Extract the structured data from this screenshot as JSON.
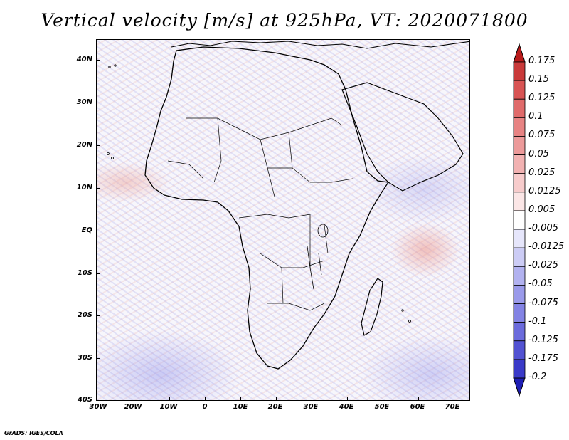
{
  "title": "Vertical velocity [m/s] at 925hPa, VT: 2020071800",
  "map": {
    "region": "Africa",
    "lat_labels": [
      "40N",
      "30N",
      "20N",
      "10N",
      "EQ",
      "10S",
      "20S",
      "30S",
      "40S"
    ],
    "lon_labels": [
      "30W",
      "20W",
      "10W",
      "0",
      "10E",
      "20E",
      "30E",
      "40E",
      "50E",
      "60E",
      "70E"
    ]
  },
  "colorbar": {
    "labels": [
      "0.175",
      "0.15",
      "0.125",
      "0.1",
      "0.075",
      "0.05",
      "0.025",
      "0.0125",
      "0.005",
      "-0.005",
      "-0.0125",
      "-0.025",
      "-0.05",
      "-0.075",
      "-0.1",
      "-0.125",
      "-0.175",
      "-0.2"
    ],
    "colors": [
      "#b91b1b",
      "#c93a3a",
      "#d85454",
      "#e06b6b",
      "#e78383",
      "#ec9a9a",
      "#f2b2b2",
      "#f7cccc",
      "#fbe6e6",
      "#ffffff",
      "#e6e6fb",
      "#ccccf5",
      "#b2b2f0",
      "#9a9aea",
      "#8383e4",
      "#6b6bdc",
      "#5252d2",
      "#3a3ac8",
      "#1e1eb4"
    ]
  },
  "credit": "GrADS: IGES/COLA"
}
